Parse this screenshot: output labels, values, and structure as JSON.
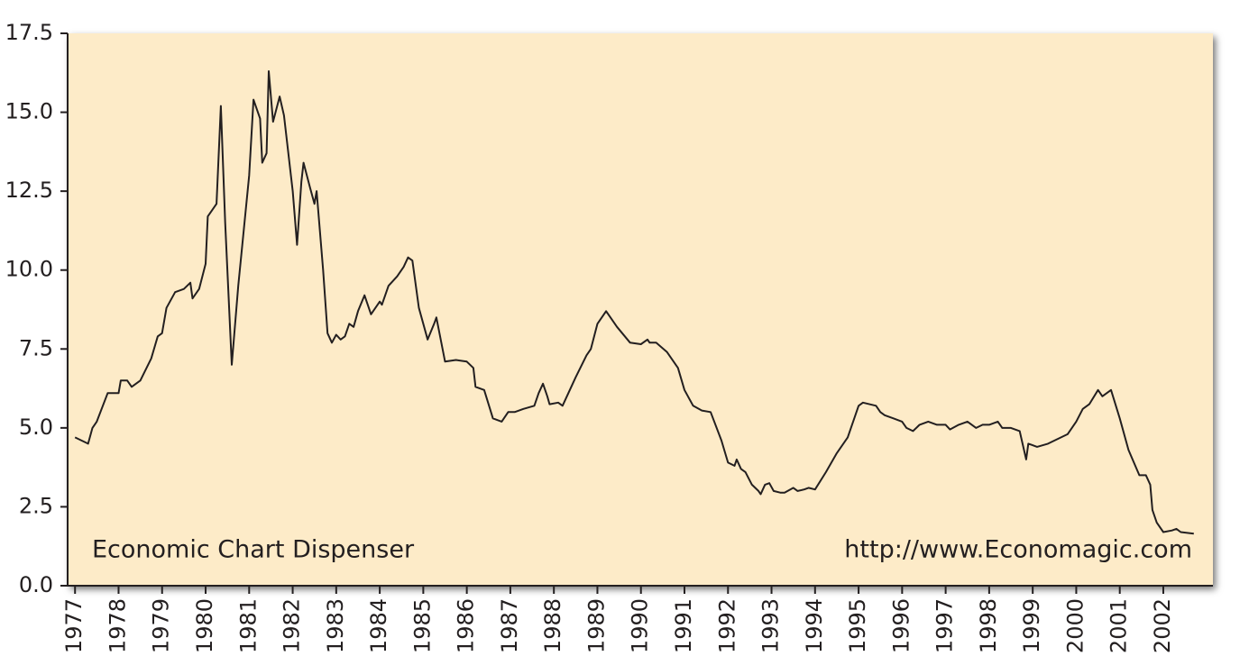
{
  "chart_data": {
    "type": "line",
    "annotations": [
      "Economic Chart Dispenser",
      "http://www.Economagic.com"
    ],
    "background": "#fdebc8",
    "xlim": [
      1976.83,
      2003.14
    ],
    "xticks": [
      1977,
      1978,
      1979,
      1980,
      1981,
      1982,
      1983,
      1984,
      1985,
      1986,
      1987,
      1988,
      1989,
      1990,
      1991,
      1992,
      1993,
      1994,
      1995,
      1996,
      1997,
      1998,
      1999,
      2000,
      2001,
      2002
    ],
    "ylim": [
      0,
      17.5
    ],
    "yticks": [
      {
        "value": 0,
        "label": "0.0"
      },
      2.5,
      {
        "value": 5,
        "label": "5.0"
      },
      7.5,
      {
        "value": 10,
        "label": "10.0"
      },
      12.5,
      {
        "value": 15,
        "label": "15.0"
      },
      17.5
    ],
    "x": [
      1977.0,
      1977.3,
      1977.4,
      1977.5,
      1977.75,
      1978.0,
      1978.05,
      1978.2,
      1978.3,
      1978.5,
      1978.75,
      1978.9,
      1979.0,
      1979.1,
      1979.3,
      1979.5,
      1979.65,
      1979.7,
      1979.85,
      1980.0,
      1980.05,
      1980.25,
      1980.35,
      1980.45,
      1980.6,
      1980.75,
      1981.0,
      1981.1,
      1981.25,
      1981.3,
      1981.4,
      1981.45,
      1981.55,
      1981.7,
      1981.8,
      1982.0,
      1982.1,
      1982.2,
      1982.25,
      1982.4,
      1982.5,
      1982.55,
      1982.7,
      1982.8,
      1982.9,
      1983.0,
      1983.1,
      1983.2,
      1983.3,
      1983.4,
      1983.5,
      1983.65,
      1983.8,
      1984.0,
      1984.05,
      1984.2,
      1984.4,
      1984.55,
      1984.65,
      1984.75,
      1984.9,
      1985.1,
      1985.25,
      1985.3,
      1985.5,
      1985.75,
      1986.0,
      1986.15,
      1986.2,
      1986.4,
      1986.6,
      1986.8,
      1986.95,
      1987.1,
      1987.3,
      1987.55,
      1987.65,
      1987.75,
      1987.85,
      1987.9,
      1988.1,
      1988.2,
      1988.5,
      1988.75,
      1988.85,
      1989.0,
      1989.2,
      1989.45,
      1989.75,
      1990.0,
      1990.15,
      1990.2,
      1990.35,
      1990.6,
      1990.85,
      1991.0,
      1991.2,
      1991.4,
      1991.6,
      1991.85,
      1992.0,
      1992.15,
      1992.2,
      1992.3,
      1992.4,
      1992.55,
      1992.7,
      1992.75,
      1992.85,
      1992.95,
      1993.05,
      1993.2,
      1993.3,
      1993.5,
      1993.6,
      1993.75,
      1993.85,
      1994.0,
      1994.25,
      1994.5,
      1994.75,
      1995.0,
      1995.1,
      1995.4,
      1995.5,
      1995.6,
      1995.8,
      1996.0,
      1996.1,
      1996.25,
      1996.4,
      1996.6,
      1996.8,
      1997.0,
      1997.1,
      1997.3,
      1997.5,
      1997.7,
      1997.85,
      1998.0,
      1998.2,
      1998.3,
      1998.5,
      1998.7,
      1998.8,
      1998.85,
      1998.9,
      1999.1,
      1999.35,
      1999.5,
      1999.8,
      2000.0,
      2000.15,
      2000.3,
      2000.5,
      2000.6,
      2000.8,
      2001.0,
      2001.2,
      2001.45,
      2001.6,
      2001.7,
      2001.75,
      2001.85,
      2002.0,
      2002.2,
      2002.3,
      2002.4,
      2002.7
    ],
    "series": [
      {
        "color": "#231f20",
        "values": [
          4.7,
          4.5,
          5.0,
          5.2,
          6.1,
          6.1,
          6.5,
          6.5,
          6.3,
          6.5,
          7.2,
          7.9,
          8.0,
          8.8,
          9.3,
          9.4,
          9.6,
          9.1,
          9.4,
          10.2,
          11.7,
          12.1,
          15.2,
          11.5,
          7.0,
          9.5,
          13.0,
          15.4,
          14.8,
          13.4,
          13.7,
          16.3,
          14.7,
          15.5,
          14.9,
          12.5,
          10.8,
          12.8,
          13.4,
          12.6,
          12.1,
          12.5,
          10.0,
          8.0,
          7.7,
          7.95,
          7.8,
          7.9,
          8.3,
          8.2,
          8.7,
          9.2,
          8.6,
          9.0,
          8.9,
          9.5,
          9.8,
          10.1,
          10.4,
          10.3,
          8.8,
          7.8,
          8.3,
          8.5,
          7.1,
          7.15,
          7.1,
          6.9,
          6.3,
          6.2,
          5.3,
          5.2,
          5.5,
          5.5,
          5.6,
          5.7,
          6.1,
          6.4,
          6.0,
          5.75,
          5.8,
          5.7,
          6.6,
          7.3,
          7.5,
          8.3,
          8.7,
          8.2,
          7.7,
          7.65,
          7.8,
          7.7,
          7.7,
          7.4,
          6.9,
          6.2,
          5.7,
          5.55,
          5.5,
          4.6,
          3.9,
          3.8,
          4.0,
          3.7,
          3.6,
          3.2,
          3.0,
          2.9,
          3.2,
          3.25,
          3.0,
          2.95,
          2.95,
          3.1,
          3.0,
          3.05,
          3.1,
          3.05,
          3.6,
          4.2,
          4.7,
          5.7,
          5.8,
          5.7,
          5.5,
          5.4,
          5.3,
          5.2,
          5.0,
          4.9,
          5.1,
          5.2,
          5.1,
          5.1,
          4.95,
          5.1,
          5.2,
          5.0,
          5.1,
          5.1,
          5.2,
          5.0,
          5.0,
          4.9,
          4.3,
          4.0,
          4.5,
          4.4,
          4.5,
          4.6,
          4.8,
          5.2,
          5.6,
          5.75,
          6.2,
          6.0,
          6.2,
          5.3,
          4.3,
          3.5,
          3.5,
          3.2,
          2.4,
          2.0,
          1.7,
          1.75,
          1.8,
          1.7,
          1.65
        ]
      }
    ]
  }
}
